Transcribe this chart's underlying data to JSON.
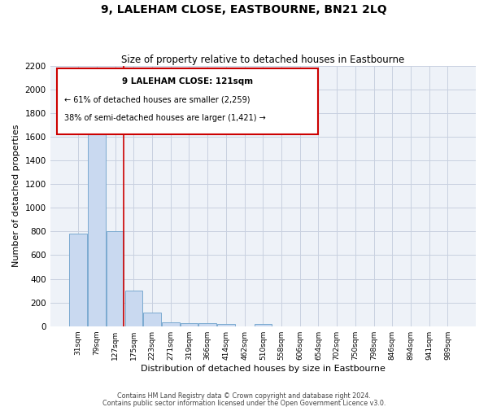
{
  "title": "9, LALEHAM CLOSE, EASTBOURNE, BN21 2LQ",
  "subtitle": "Size of property relative to detached houses in Eastbourne",
  "xlabel": "Distribution of detached houses by size in Eastbourne",
  "ylabel": "Number of detached properties",
  "bar_labels": [
    "31sqm",
    "79sqm",
    "127sqm",
    "175sqm",
    "223sqm",
    "271sqm",
    "319sqm",
    "366sqm",
    "414sqm",
    "462sqm",
    "510sqm",
    "558sqm",
    "606sqm",
    "654sqm",
    "702sqm",
    "750sqm",
    "798sqm",
    "846sqm",
    "894sqm",
    "941sqm",
    "989sqm"
  ],
  "bar_values": [
    780,
    1690,
    800,
    300,
    115,
    35,
    28,
    28,
    20,
    0,
    20,
    0,
    0,
    0,
    0,
    0,
    0,
    0,
    0,
    0,
    0
  ],
  "bar_color": "#c9d9f0",
  "bar_edge_color": "#7aaad0",
  "grid_color": "#c8d0e0",
  "bg_color": "#eef2f8",
  "annotation_box_color": "#ffffff",
  "annotation_box_edge": "#cc0000",
  "annotation_title": "9 LALEHAM CLOSE: 121sqm",
  "annotation_line1": "← 61% of detached houses are smaller (2,259)",
  "annotation_line2": "38% of semi-detached houses are larger (1,421) →",
  "ylim": [
    0,
    2200
  ],
  "yticks": [
    0,
    200,
    400,
    600,
    800,
    1000,
    1200,
    1400,
    1600,
    1800,
    2000,
    2200
  ],
  "footer1": "Contains HM Land Registry data © Crown copyright and database right 2024.",
  "footer2": "Contains public sector information licensed under the Open Government Licence v3.0."
}
